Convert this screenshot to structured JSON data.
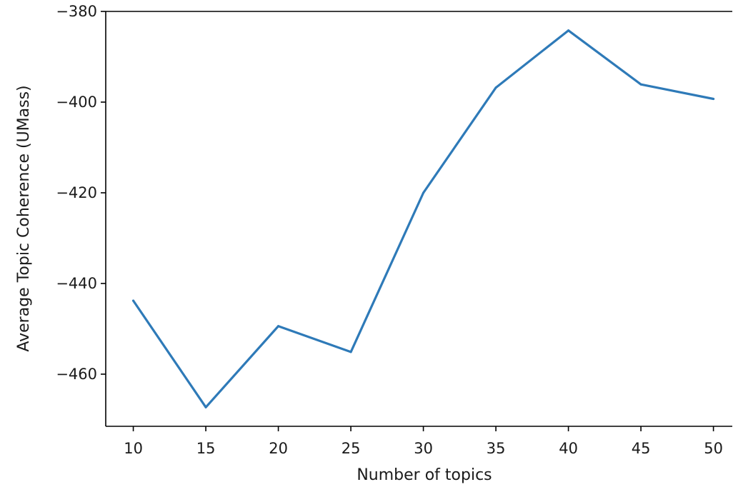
{
  "chart_data": {
    "type": "line",
    "title": "",
    "xlabel": "Number of topics",
    "ylabel": "Average Topic Coherence (UMass)",
    "x": [
      10,
      15,
      20,
      25,
      30,
      35,
      40,
      45,
      50
    ],
    "series": [
      {
        "values": [
          -443.8,
          -467.3,
          -449.4,
          -455.1,
          -420.0,
          -396.8,
          -384.2,
          -396.1,
          -399.3
        ]
      }
    ],
    "x_ticks": [
      "10",
      "15",
      "20",
      "25",
      "30",
      "35",
      "40",
      "45",
      "50"
    ],
    "y_ticks": [
      "−380",
      "−400",
      "−420",
      "−440",
      "−460"
    ],
    "x_tick_values": [
      10,
      15,
      20,
      25,
      30,
      35,
      40,
      45,
      50
    ],
    "y_tick_values": [
      -380,
      -400,
      -420,
      -440,
      -460
    ],
    "xlim": [
      8.1,
      51.3
    ],
    "ylim": [
      -471.5,
      -380
    ],
    "grid": false,
    "line_color": "#2e7ab8"
  }
}
